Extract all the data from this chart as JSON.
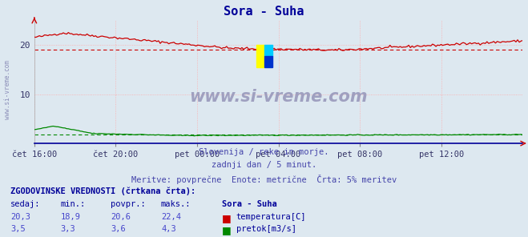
{
  "title": "Sora - Suha",
  "title_color": "#000099",
  "bg_color": "#dde8f0",
  "plot_bg_color": "#dde8f0",
  "grid_color": "#ffaaaa",
  "xlabel_ticks": [
    "čet 16:00",
    "čet 20:00",
    "pet 00:00",
    "pet 04:00",
    "pet 08:00",
    "pet 12:00"
  ],
  "x_tick_positions": [
    0.0,
    0.1667,
    0.3333,
    0.5,
    0.6667,
    0.8333
  ],
  "ylim": [
    0,
    25
  ],
  "yticks": [
    10,
    20
  ],
  "temp_color": "#cc0000",
  "flow_color": "#008800",
  "watermark_text": "www.si-vreme.com",
  "watermark_color": "#9999bb",
  "subtitle1": "Slovenija / reke in morje.",
  "subtitle2": "zadnji dan / 5 minut.",
  "subtitle3": "Meritve: povprečne  Enote: metrične  Črta: 5% meritev",
  "subtitle_color": "#4444aa",
  "table_header": "ZGODOVINSKE VREDNOSTI (črtkana črta):",
  "table_col1": "sedaj:",
  "table_col2": "min.:",
  "table_col3": "povpr.:",
  "table_col4": "maks.:",
  "table_col5": "Sora - Suha",
  "temp_sedaj": "20,3",
  "temp_min": "18,9",
  "temp_povpr": "20,6",
  "temp_maks": "22,4",
  "flow_sedaj": "3,5",
  "flow_min": "3,3",
  "flow_povpr": "3,6",
  "flow_maks": "4,3",
  "temp_label": "temperatura[C]",
  "flow_label": "pretok[m3/s]",
  "table_color": "#000099",
  "table_value_color": "#4444cc",
  "n_points": 288,
  "temp_avg_val": 19.0,
  "flow_avg_val": 1.8,
  "xaxis_color": "#000099"
}
